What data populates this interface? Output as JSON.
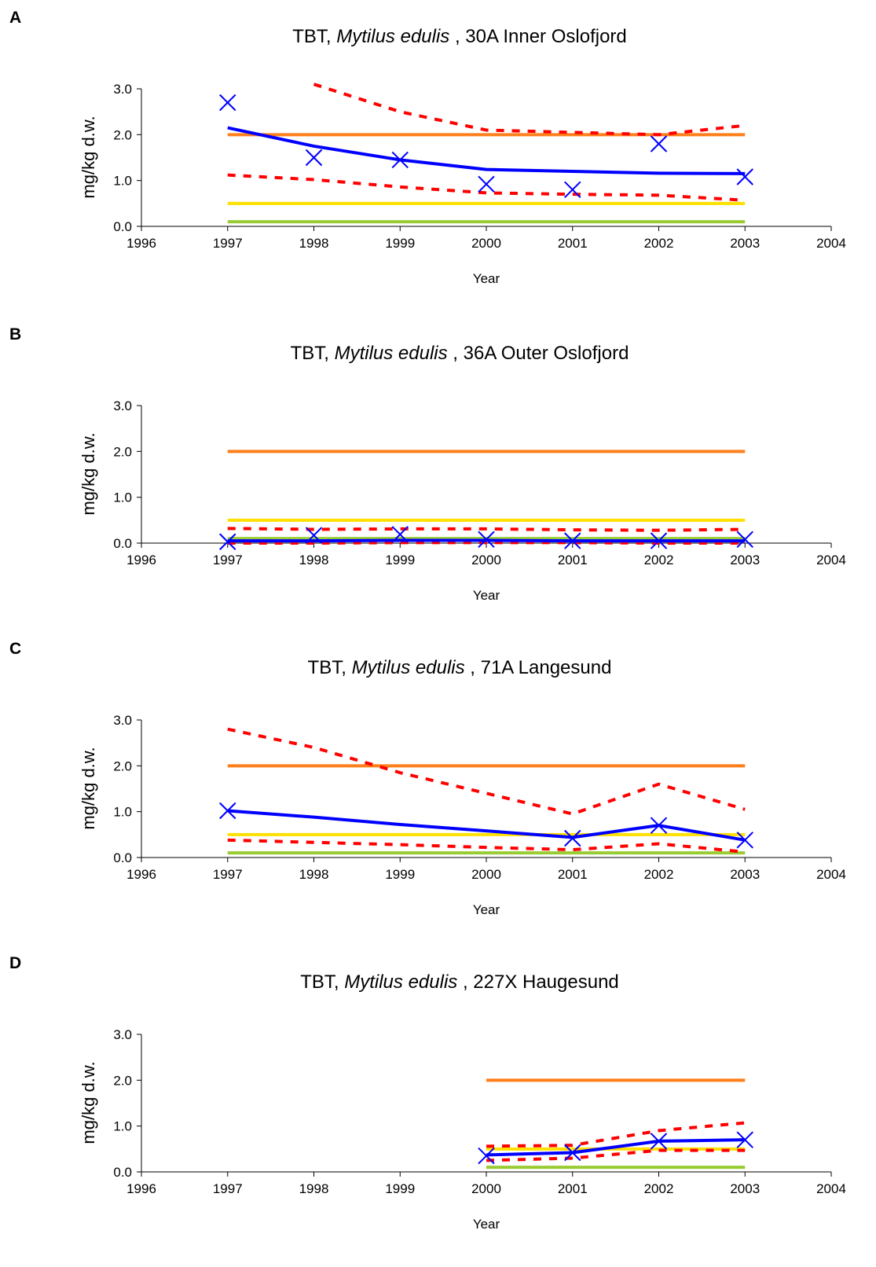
{
  "colors": {
    "orange_line": "#ff7f1a",
    "yellow_line": "#ffe000",
    "green_line": "#99cc33",
    "ci_line": "#ff0000",
    "trend_line": "#0000ff",
    "marker": "#0000ff"
  },
  "chart_data": [
    {
      "panel_letter": "A",
      "type": "line",
      "title_prefix": "TBT, ",
      "title_species": "Mytilus edulis",
      "title_suffix": " , 30A  Inner Oslofjord",
      "xlabel": "Year",
      "ylabel": "mg/kg d.w.",
      "xlim": [
        1996,
        2004
      ],
      "ylim": [
        0,
        3
      ],
      "xticks": [
        "1996",
        "1997",
        "1998",
        "1999",
        "2000",
        "2001",
        "2002",
        "2003",
        "2004"
      ],
      "yticks": [
        "0.0",
        "1.0",
        "2.0",
        "3.0"
      ],
      "observations": {
        "x": [
          1997,
          1998,
          1999,
          2000,
          2001,
          2002,
          2003
        ],
        "y": [
          2.7,
          1.5,
          1.45,
          0.92,
          0.8,
          1.8,
          1.08
        ]
      },
      "trend": {
        "x": [
          1997,
          1998,
          1999,
          2000,
          2001,
          2002,
          2003
        ],
        "y": [
          2.15,
          1.75,
          1.45,
          1.24,
          1.2,
          1.16,
          1.15
        ]
      },
      "upper_ci": {
        "x": [
          1998,
          1999,
          2000,
          2001,
          2002,
          2003
        ],
        "y": [
          3.1,
          2.5,
          2.1,
          2.05,
          2.0,
          2.2
        ]
      },
      "lower_ci": {
        "x": [
          1997,
          1998,
          1999,
          2000,
          2001,
          2002,
          2003
        ],
        "y": [
          1.12,
          1.02,
          0.86,
          0.73,
          0.7,
          0.68,
          0.57
        ]
      },
      "class_lines": [
        {
          "color_key": "orange_line",
          "x": [
            1997,
            2003
          ],
          "y": 2.0
        },
        {
          "color_key": "yellow_line",
          "x": [
            1997,
            2003
          ],
          "y": 0.5
        },
        {
          "color_key": "green_line",
          "x": [
            1997,
            2003
          ],
          "y": 0.1
        }
      ]
    },
    {
      "panel_letter": "B",
      "type": "line",
      "title_prefix": "TBT, ",
      "title_species": "Mytilus edulis",
      "title_suffix": " , 36A Outer Oslofjord",
      "xlabel": "Year",
      "ylabel": "mg/kg d.w.",
      "xlim": [
        1996,
        2004
      ],
      "ylim": [
        0,
        3
      ],
      "xticks": [
        "1996",
        "1997",
        "1998",
        "1999",
        "2000",
        "2001",
        "2002",
        "2003",
        "2004"
      ],
      "yticks": [
        "0.0",
        "1.0",
        "2.0",
        "3.0"
      ],
      "observations": {
        "x": [
          1997,
          1998,
          1999,
          2000,
          2001,
          2002,
          2003
        ],
        "y": [
          0.03,
          0.17,
          0.19,
          0.08,
          0.05,
          0.05,
          0.08
        ]
      },
      "trend": {
        "x": [
          1997,
          1998,
          1999,
          2000,
          2001,
          2002,
          2003
        ],
        "y": [
          0.05,
          0.05,
          0.06,
          0.06,
          0.05,
          0.05,
          0.05
        ]
      },
      "upper_ci": {
        "x": [
          1997,
          1998,
          1999,
          2000,
          2001,
          2002,
          2003
        ],
        "y": [
          0.32,
          0.3,
          0.31,
          0.31,
          0.29,
          0.28,
          0.3
        ]
      },
      "lower_ci": {
        "x": [
          1997,
          1998,
          1999,
          2000,
          2001,
          2002,
          2003
        ],
        "y": [
          0.0,
          0.0,
          0.01,
          0.01,
          0.01,
          0.0,
          0.0
        ]
      },
      "class_lines": [
        {
          "color_key": "orange_line",
          "x": [
            1997,
            2003
          ],
          "y": 2.0
        },
        {
          "color_key": "yellow_line",
          "x": [
            1997,
            2003
          ],
          "y": 0.5
        },
        {
          "color_key": "green_line",
          "x": [
            1997,
            2003
          ],
          "y": 0.1
        }
      ]
    },
    {
      "panel_letter": "C",
      "type": "line",
      "title_prefix": "TBT, ",
      "title_species": "Mytilus edulis",
      "title_suffix": " , 71A Langesund",
      "xlabel": "Year",
      "ylabel": "mg/kg d.w.",
      "xlim": [
        1996,
        2004
      ],
      "ylim": [
        0,
        3
      ],
      "xticks": [
        "1996",
        "1997",
        "1998",
        "1999",
        "2000",
        "2001",
        "2002",
        "2003",
        "2004"
      ],
      "yticks": [
        "0.0",
        "1.0",
        "2.0",
        "3.0"
      ],
      "observations": {
        "x": [
          1997,
          2001,
          2002,
          2003
        ],
        "y": [
          1.02,
          0.42,
          0.7,
          0.38
        ]
      },
      "trend": {
        "x": [
          1997,
          1998,
          1999,
          2000,
          2001,
          2002,
          2003
        ],
        "y": [
          1.02,
          0.88,
          0.72,
          0.58,
          0.44,
          0.7,
          0.38
        ]
      },
      "upper_ci": {
        "x": [
          1997,
          1998,
          1999,
          2000,
          2001,
          2002,
          2003
        ],
        "y": [
          2.8,
          2.4,
          1.85,
          1.4,
          0.95,
          1.6,
          1.05
        ]
      },
      "lower_ci": {
        "x": [
          1997,
          1998,
          1999,
          2000,
          2001,
          2002,
          2003
        ],
        "y": [
          0.38,
          0.33,
          0.28,
          0.22,
          0.17,
          0.3,
          0.12
        ]
      },
      "class_lines": [
        {
          "color_key": "orange_line",
          "x": [
            1997,
            2003
          ],
          "y": 2.0
        },
        {
          "color_key": "yellow_line",
          "x": [
            1997,
            2003
          ],
          "y": 0.5
        },
        {
          "color_key": "green_line",
          "x": [
            1997,
            2003
          ],
          "y": 0.1
        }
      ]
    },
    {
      "panel_letter": "D",
      "type": "line",
      "title_prefix": "TBT, ",
      "title_species": "Mytilus edulis",
      "title_suffix": " , 227X Haugesund",
      "xlabel": "Year",
      "ylabel": "mg/kg d.w.",
      "xlim": [
        1996,
        2004
      ],
      "ylim": [
        0,
        3
      ],
      "xticks": [
        "1996",
        "1997",
        "1998",
        "1999",
        "2000",
        "2001",
        "2002",
        "2003",
        "2004"
      ],
      "yticks": [
        "0.0",
        "1.0",
        "2.0",
        "3.0"
      ],
      "observations": {
        "x": [
          2000,
          2001,
          2002,
          2003
        ],
        "y": [
          0.35,
          0.42,
          0.67,
          0.7
        ]
      },
      "trend": {
        "x": [
          2000,
          2001,
          2002,
          2003
        ],
        "y": [
          0.37,
          0.42,
          0.67,
          0.7
        ]
      },
      "upper_ci": {
        "x": [
          2000,
          2001,
          2002,
          2003
        ],
        "y": [
          0.56,
          0.58,
          0.9,
          1.07
        ]
      },
      "lower_ci": {
        "x": [
          2000,
          2001,
          2002,
          2003
        ],
        "y": [
          0.25,
          0.3,
          0.47,
          0.47
        ]
      },
      "class_lines": [
        {
          "color_key": "orange_line",
          "x": [
            2000,
            2003
          ],
          "y": 2.0
        },
        {
          "color_key": "yellow_line",
          "x": [
            2000,
            2003
          ],
          "y": 0.5
        },
        {
          "color_key": "green_line",
          "x": [
            2000,
            2003
          ],
          "y": 0.1
        }
      ]
    }
  ]
}
